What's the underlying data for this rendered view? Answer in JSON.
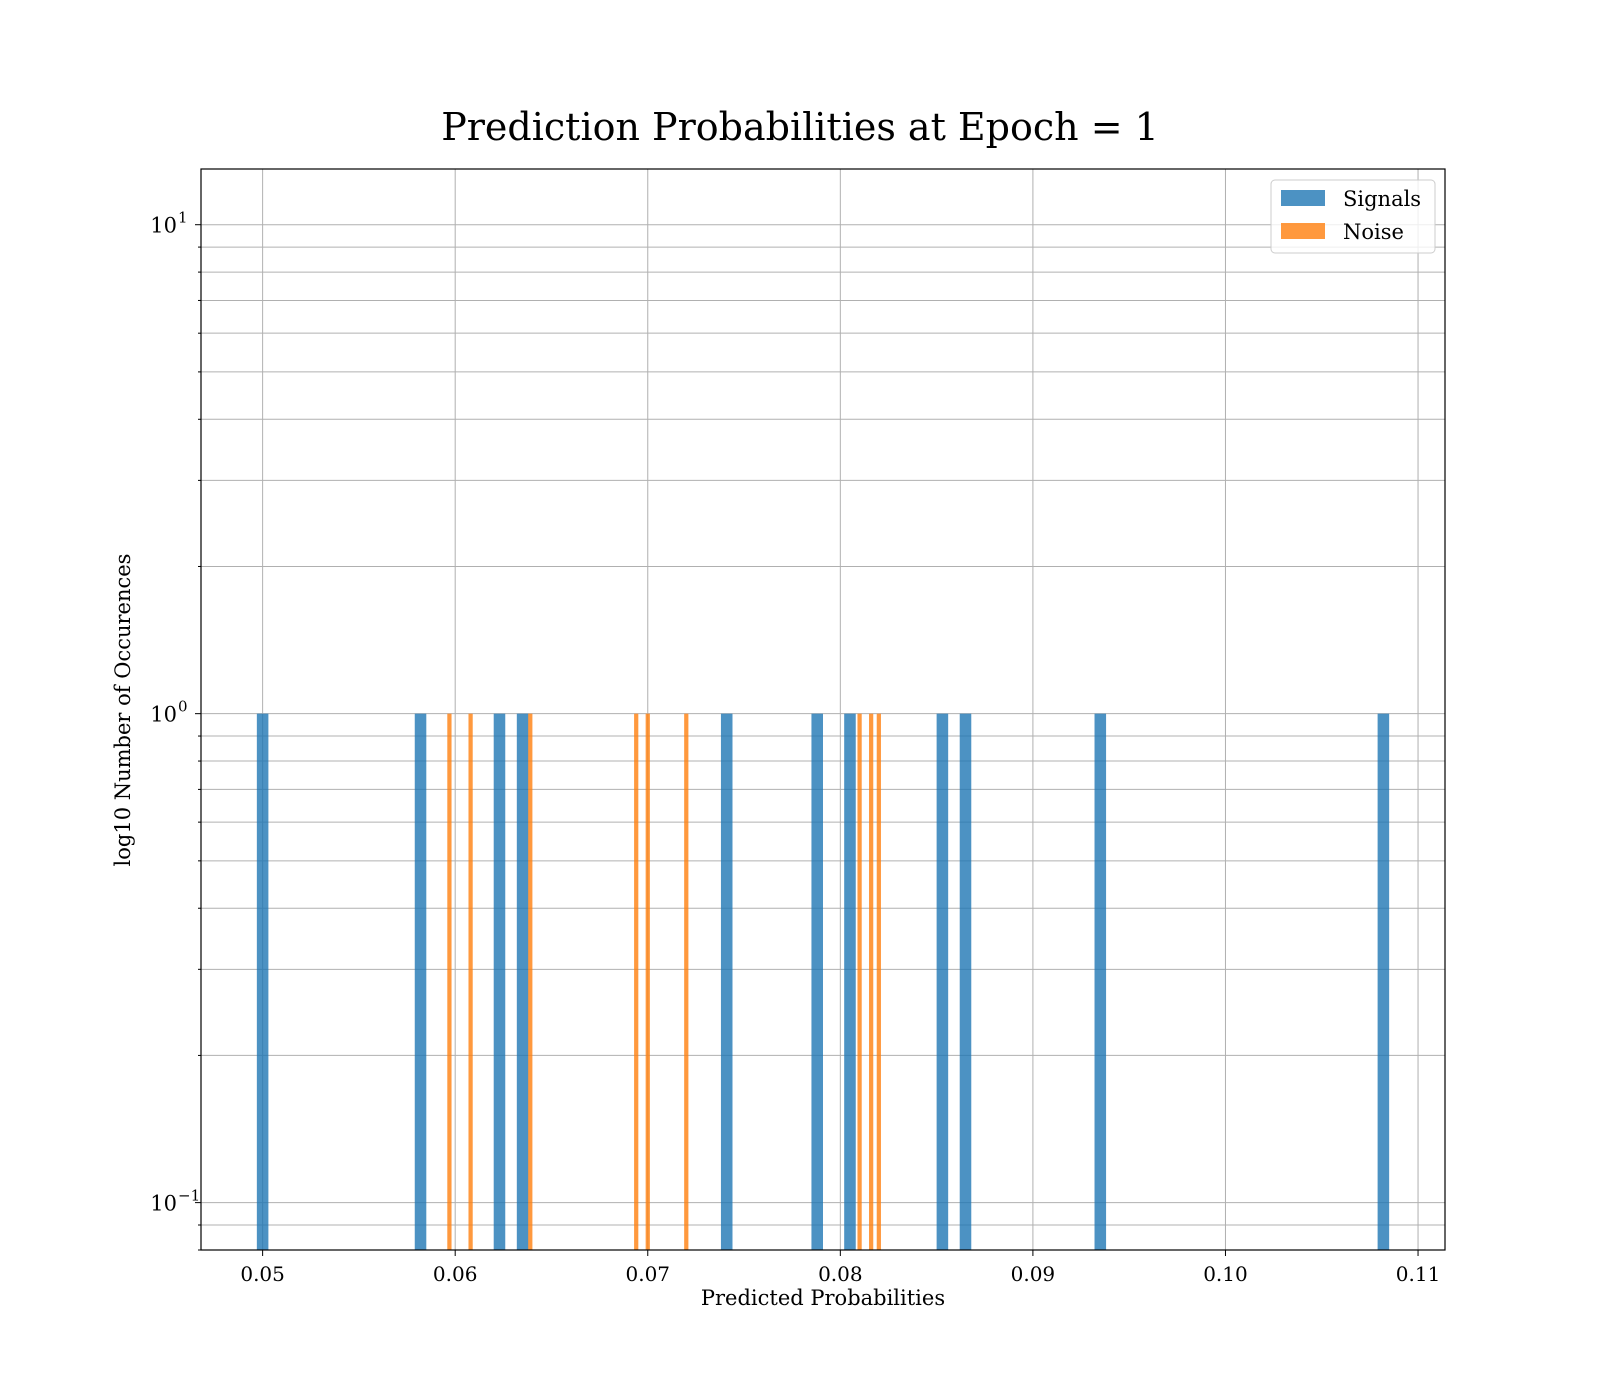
{
  "chart_data": {
    "type": "bar",
    "title": "Prediction Probabilities at Epoch = 1",
    "xlabel": "Predicted Probabilities",
    "ylabel": "log10 Number of Occurences",
    "xlim": [
      0.0468,
      0.1114
    ],
    "ylim": [
      0.08,
      13
    ],
    "yscale": "log",
    "grid": true,
    "legend": "top-right",
    "x_ticks": [
      {
        "value": 0.05,
        "label": "0.05"
      },
      {
        "value": 0.06,
        "label": "0.06"
      },
      {
        "value": 0.07,
        "label": "0.07"
      },
      {
        "value": 0.08,
        "label": "0.08"
      },
      {
        "value": 0.09,
        "label": "0.09"
      },
      {
        "value": 0.1,
        "label": "0.10"
      },
      {
        "value": 0.11,
        "label": "0.11"
      }
    ],
    "y_ticks": [
      {
        "value": 10,
        "base": "10",
        "exp": "1"
      },
      {
        "value": 1,
        "base": "10",
        "exp": "0"
      },
      {
        "value": 0.1,
        "base": "10",
        "exp": "−1"
      }
    ],
    "series": [
      {
        "name": "Signals",
        "color": "#1f77b4",
        "bar_width": 0.0006,
        "x": [
          0.05,
          0.0582,
          0.0623,
          0.0635,
          0.0741,
          0.0788,
          0.0805,
          0.0853,
          0.0865,
          0.0935,
          0.1082
        ],
        "values": [
          1,
          1,
          1,
          1,
          1,
          1,
          1,
          1,
          1,
          1,
          1
        ]
      },
      {
        "name": "Noise",
        "color": "#ff7f0e",
        "bar_width": 0.00022,
        "x": [
          0.0597,
          0.0608,
          0.0639,
          0.0694,
          0.07,
          0.072,
          0.081,
          0.0816,
          0.082
        ],
        "values": [
          1,
          1,
          1,
          1,
          1,
          1,
          1,
          1,
          1
        ]
      }
    ]
  }
}
